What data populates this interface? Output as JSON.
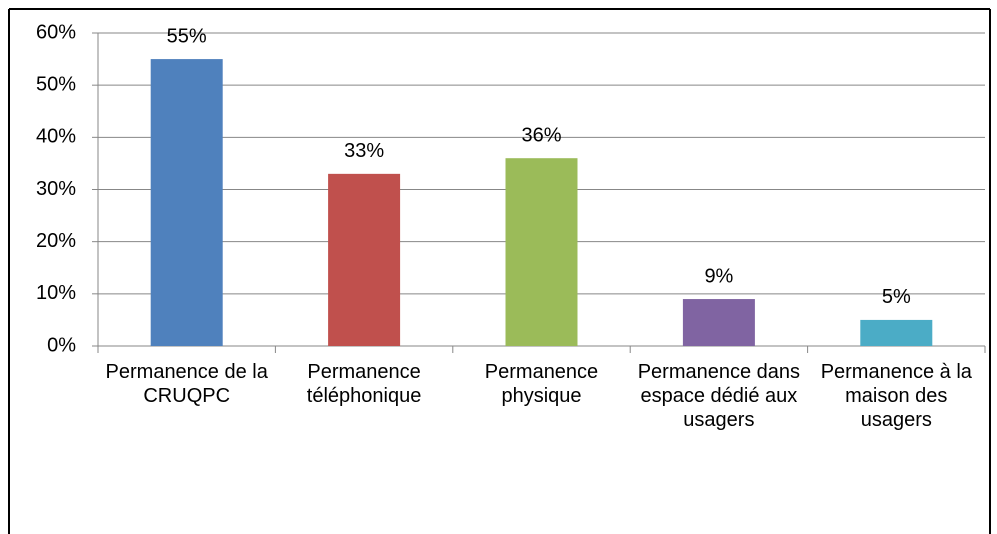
{
  "chart_data": {
    "type": "bar",
    "categories": [
      "Permanence de la CRUQPC",
      "Permanence téléphonique",
      "Permanence physique",
      "Permanence dans espace dédié aux usagers",
      "Permanence à la maison des usagers"
    ],
    "values": [
      55,
      33,
      36,
      9,
      5
    ],
    "value_labels": [
      "55%",
      "33%",
      "36%",
      "9%",
      "5%"
    ],
    "colors": [
      "#4f81bd",
      "#c0504d",
      "#9bbb59",
      "#8064a2",
      "#4bacc6"
    ],
    "ylim": [
      0,
      60
    ],
    "yticks": [
      {
        "value": 0,
        "label": "0%"
      },
      {
        "value": 10,
        "label": "10%"
      },
      {
        "value": 20,
        "label": "20%"
      },
      {
        "value": 30,
        "label": "30%"
      },
      {
        "value": 40,
        "label": "40%"
      },
      {
        "value": 50,
        "label": "50%"
      },
      {
        "value": 60,
        "label": "60%"
      }
    ],
    "grid": true
  }
}
